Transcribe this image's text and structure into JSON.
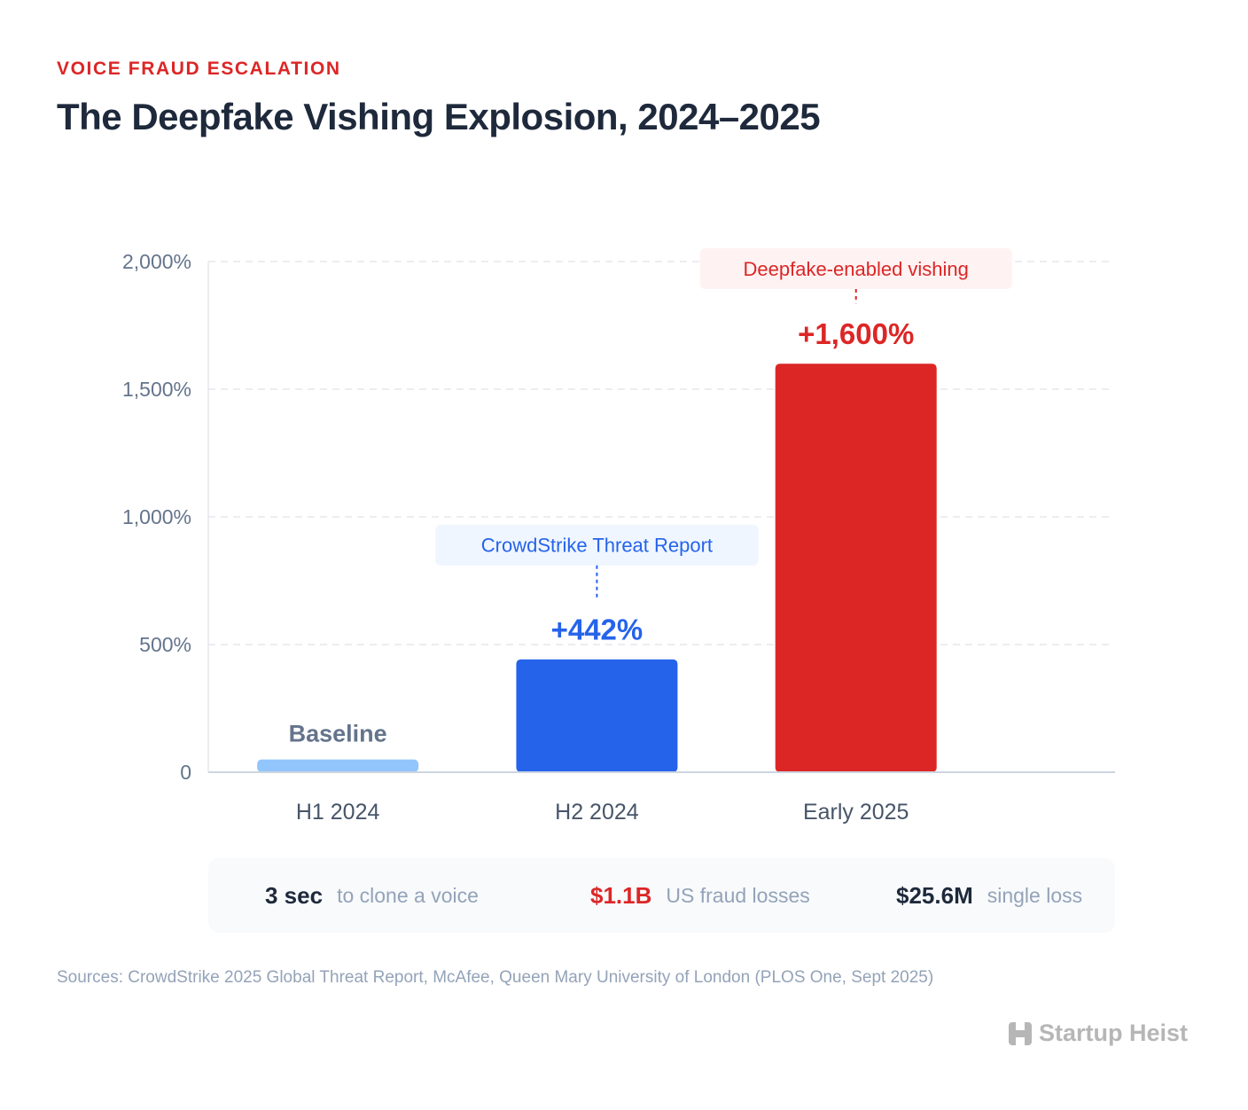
{
  "header": {
    "eyebrow": "VOICE FRAUD ESCALATION",
    "title": "The Deepfake Vishing Explosion, 2024–2025"
  },
  "chart_data": {
    "type": "bar",
    "title": "The Deepfake Vishing Explosion, 2024–2025",
    "categories": [
      "H1 2024",
      "H2 2024",
      "Early 2025"
    ],
    "values": [
      50,
      442,
      1600
    ],
    "value_labels": [
      "Baseline",
      "+442%",
      "+1,600%"
    ],
    "bar_colors": [
      "#93c5fd",
      "#2563eb",
      "#dc2626"
    ],
    "label_colors": [
      "#64748b",
      "#2563eb",
      "#dc2626"
    ],
    "ylim": [
      0,
      2000
    ],
    "yticks": [
      0,
      500,
      1000,
      1500,
      2000
    ],
    "ytick_labels": [
      "0",
      "500%",
      "1,000%",
      "1,500%",
      "2,000%"
    ],
    "xlabel": "",
    "ylabel": "",
    "grid": true,
    "annotations": [
      {
        "category_index": 1,
        "text": "CrowdStrike Threat Report",
        "color": "#2563eb",
        "background": "#eff6ff"
      },
      {
        "category_index": 2,
        "text": "Deepfake-enabled vishing",
        "color": "#dc2626",
        "background": "#fef2f2"
      }
    ]
  },
  "stats": [
    {
      "value": "3 sec",
      "label": "to clone a voice",
      "accent": false
    },
    {
      "value": "$1.1B",
      "label": "US fraud losses",
      "accent": true
    },
    {
      "value": "$25.6M",
      "label": "single loss",
      "accent": false
    }
  ],
  "footer": {
    "sources": "Sources: CrowdStrike 2025 Global Threat Report, McAfee, Queen Mary University of London (PLOS One, Sept 2025)",
    "brand": "Startup Heist"
  }
}
